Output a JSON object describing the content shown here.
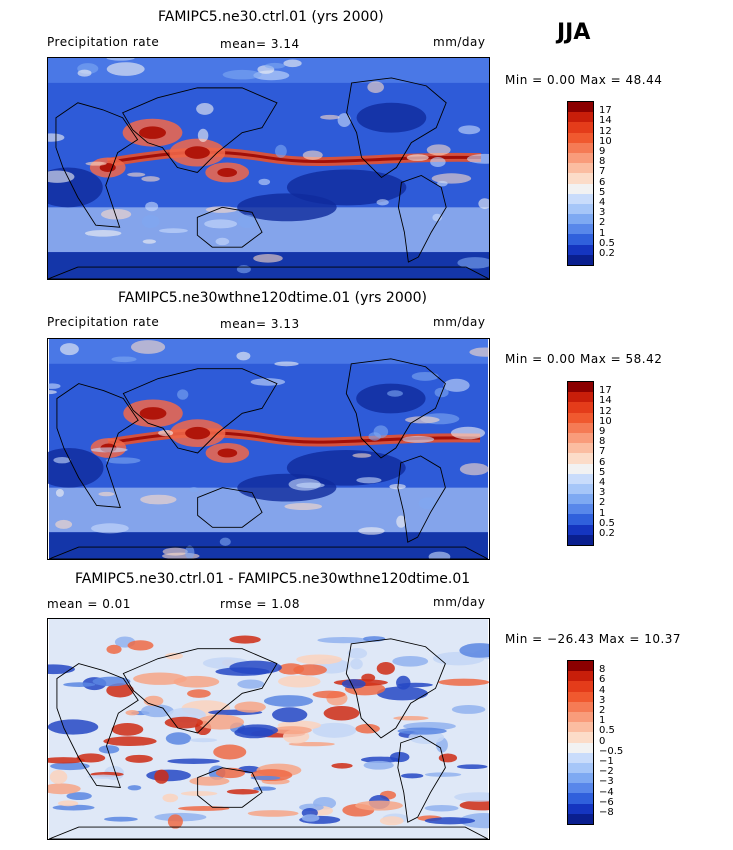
{
  "season": "JJA",
  "panels": [
    {
      "title": "FAMIPC5.ne30.ctrl.01 (yrs 2000)",
      "left_label": "Precipitation rate",
      "mid_label": "mean=   3.14",
      "units": "mm/day",
      "minmax": "Min =    0.00 Max =  48.44",
      "colorbar": {
        "labels": [
          "17",
          "14",
          "12",
          "10",
          "9",
          "8",
          "7",
          "6",
          "5",
          "4",
          "3",
          "2",
          "1",
          "0.5",
          "0.2"
        ],
        "colors": [
          "#8b0000",
          "#c81e0a",
          "#e43c1a",
          "#f0592f",
          "#f57b55",
          "#f99c7b",
          "#fbbda1",
          "#fcdcc8",
          "#f2f2f2",
          "#c9dcfb",
          "#a6c6f8",
          "#7ea9f2",
          "#5887ea",
          "#3060dc",
          "#1535c0",
          "#0a1f8f"
        ]
      }
    },
    {
      "title": "FAMIPC5.ne30wthne120dtime.01 (yrs 2000)",
      "left_label": "Precipitation rate",
      "mid_label": "mean=   3.13",
      "units": "mm/day",
      "minmax": "Min =    0.00 Max =  58.42",
      "colorbar": {
        "labels": [
          "17",
          "14",
          "12",
          "10",
          "9",
          "8",
          "7",
          "6",
          "5",
          "4",
          "3",
          "2",
          "1",
          "0.5",
          "0.2"
        ],
        "colors": [
          "#8b0000",
          "#c81e0a",
          "#e43c1a",
          "#f0592f",
          "#f57b55",
          "#f99c7b",
          "#fbbda1",
          "#fcdcc8",
          "#f2f2f2",
          "#c9dcfb",
          "#a6c6f8",
          "#7ea9f2",
          "#5887ea",
          "#3060dc",
          "#1535c0",
          "#0a1f8f"
        ]
      }
    },
    {
      "title": "FAMIPC5.ne30.ctrl.01 - FAMIPC5.ne30wthne120dtime.01",
      "left_label": "mean =    0.01",
      "mid_label": "rmse =    1.08",
      "units": "mm/day",
      "minmax": "Min = −26.43 Max =  10.37",
      "colorbar": {
        "labels": [
          "8",
          "6",
          "4",
          "3",
          "2",
          "1",
          "0.5",
          "0",
          "−0.5",
          "−1",
          "−2",
          "−3",
          "−4",
          "−6",
          "−8"
        ],
        "colors": [
          "#8b0000",
          "#c81e0a",
          "#e43c1a",
          "#f0592f",
          "#f57b55",
          "#f99c7b",
          "#fbbda1",
          "#fcdcc8",
          "#f2f2f2",
          "#c9dcfb",
          "#a6c6f8",
          "#7ea9f2",
          "#5887ea",
          "#3060dc",
          "#1535c0",
          "#0a1f8f"
        ]
      }
    }
  ]
}
